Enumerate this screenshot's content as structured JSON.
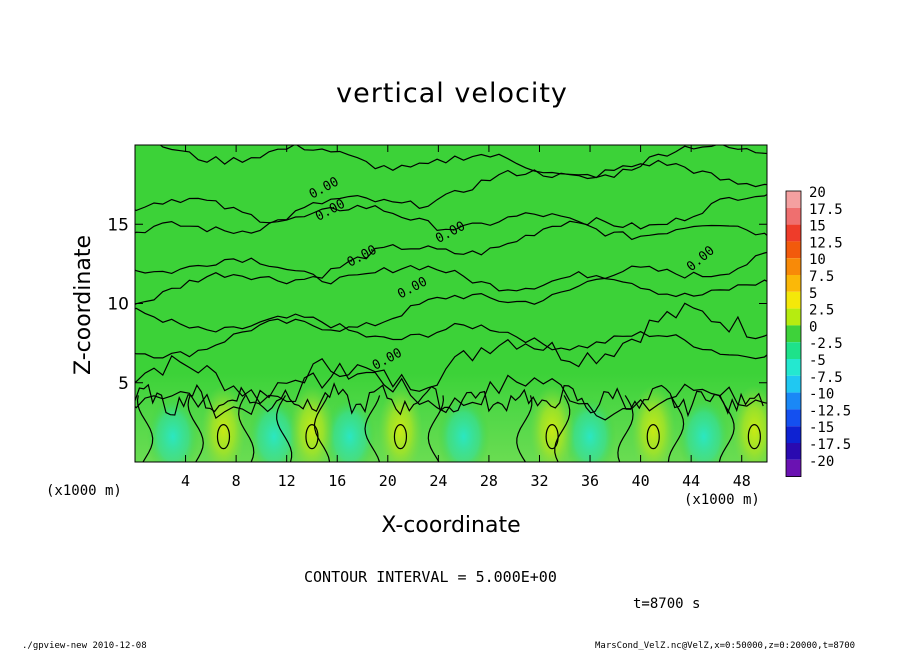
{
  "chart_data": {
    "type": "heatmap",
    "title": "vertical velocity",
    "xlabel": "X-coordinate",
    "ylabel": "Z-coordinate",
    "x_unit_label": "(x1000 m)",
    "xlim": [
      0,
      50
    ],
    "ylim": [
      0,
      20
    ],
    "x_ticks": [
      "4",
      "8",
      "12",
      "16",
      "20",
      "24",
      "28",
      "32",
      "36",
      "40",
      "44",
      "48"
    ],
    "y_ticks": [
      "5",
      "10",
      "15"
    ],
    "colorbar": {
      "levels": [
        "20",
        "17.5",
        "15",
        "12.5",
        "10",
        "7.5",
        "5",
        "2.5",
        "0",
        "-2.5",
        "-5",
        "-7.5",
        "-10",
        "-12.5",
        "-15",
        "-17.5",
        "-20"
      ],
      "colors": [
        "#f4a0a0",
        "#ef6f6f",
        "#ee3c2a",
        "#f25a0c",
        "#f88a08",
        "#fbb808",
        "#f4e80a",
        "#b6ec10",
        "#3ed23a",
        "#1ee28a",
        "#24e8d0",
        "#20c8f2",
        "#1a88f6",
        "#1450f0",
        "#0e22d2",
        "#2a0ab0",
        "#6a12b2"
      ]
    },
    "contour_labels": [
      "0.00",
      "0.00",
      "0.00",
      "0.00",
      "0.00",
      "0.00",
      "0.00"
    ],
    "contour_interval": "CONTOUR INTERVAL = 5.000E+00",
    "time_label": "t=8700 s",
    "warm_regions_x": [
      7,
      14,
      21,
      33,
      41,
      49
    ],
    "cool_regions_x": [
      3,
      11,
      17,
      26,
      36,
      45
    ]
  },
  "footer": {
    "left": "./gpview-new  2010-12-08",
    "right": "MarsCond_VelZ.nc@VelZ,x=0:50000,z=0:20000,t=8700"
  }
}
